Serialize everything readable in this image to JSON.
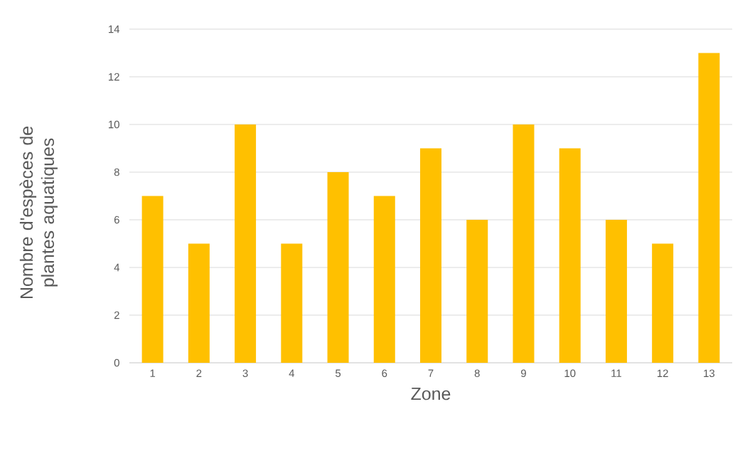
{
  "chart_data": {
    "type": "bar",
    "xlabel": "Zone",
    "ylabel": "Nombre d'espèces de plantes aquatiques",
    "categories": [
      "1",
      "2",
      "3",
      "4",
      "5",
      "6",
      "7",
      "8",
      "9",
      "10",
      "11",
      "12",
      "13"
    ],
    "values": [
      7,
      5,
      10,
      5,
      8,
      7,
      9,
      6,
      10,
      9,
      6,
      5,
      13
    ],
    "color": "#ffc000",
    "ylim": [
      0,
      14
    ],
    "yticks": [
      0,
      2,
      4,
      6,
      8,
      10,
      12,
      14
    ],
    "grid": "y"
  }
}
